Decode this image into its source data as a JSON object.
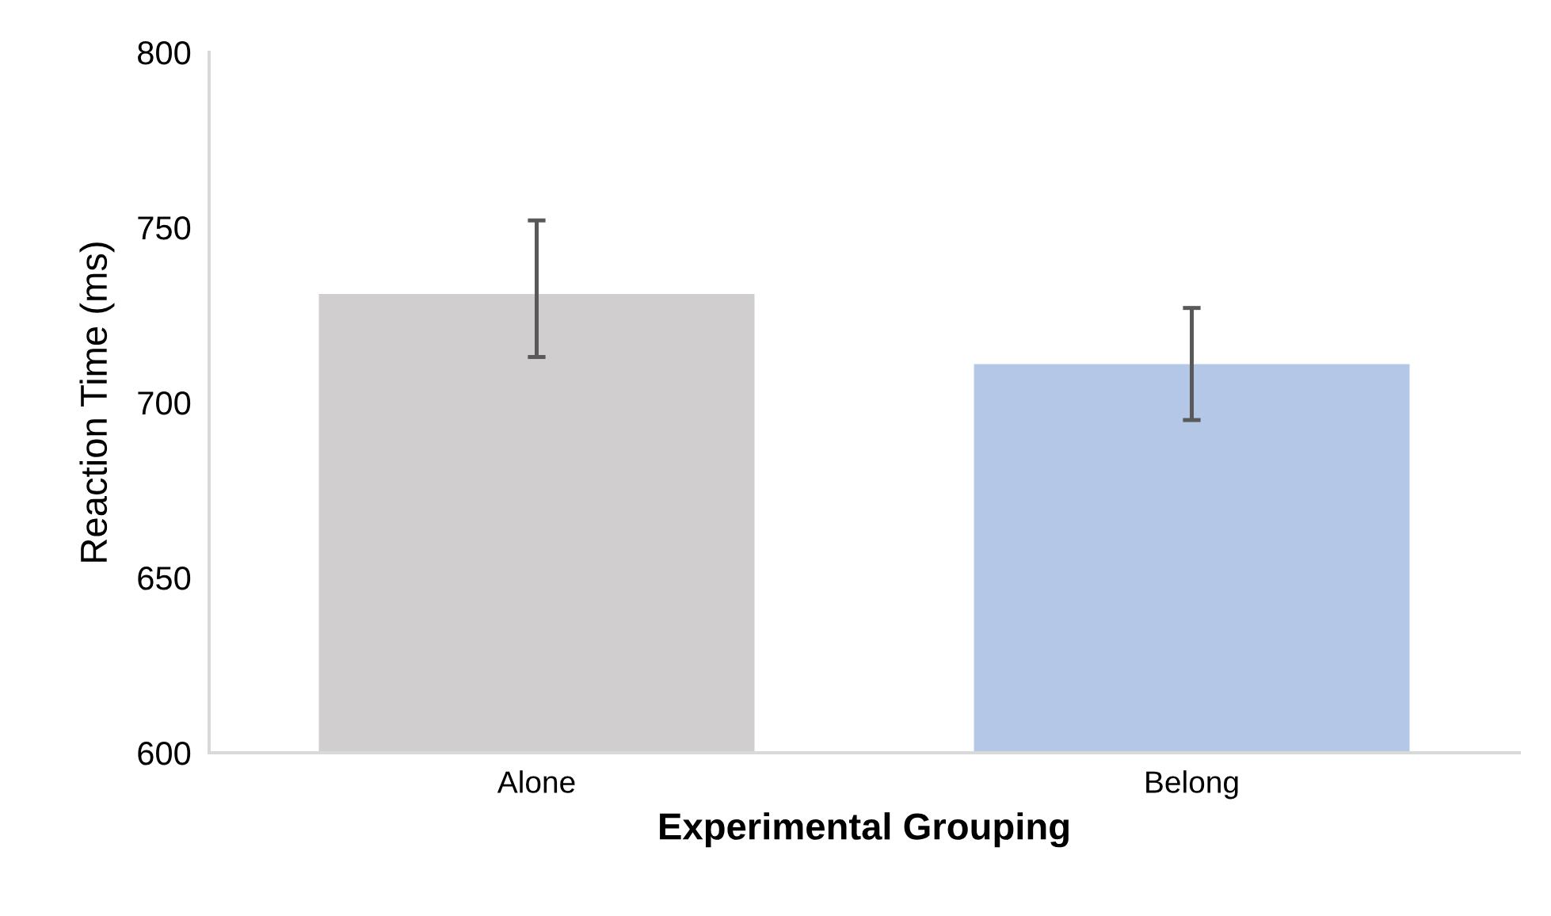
{
  "chart_data": {
    "type": "bar",
    "xlabel": "Experimental Grouping",
    "ylabel": "Reaction Time (ms)",
    "categories": [
      "Alone",
      "Belong"
    ],
    "values": [
      731,
      711
    ],
    "colors": [
      "#d0cece",
      "#b4c7e7"
    ],
    "errors": [
      [
        713,
        752
      ],
      [
        695,
        727
      ]
    ],
    "ylim": [
      600,
      800
    ],
    "yticks": [
      600,
      650,
      700,
      750,
      800
    ],
    "grid": false,
    "legend": false
  }
}
